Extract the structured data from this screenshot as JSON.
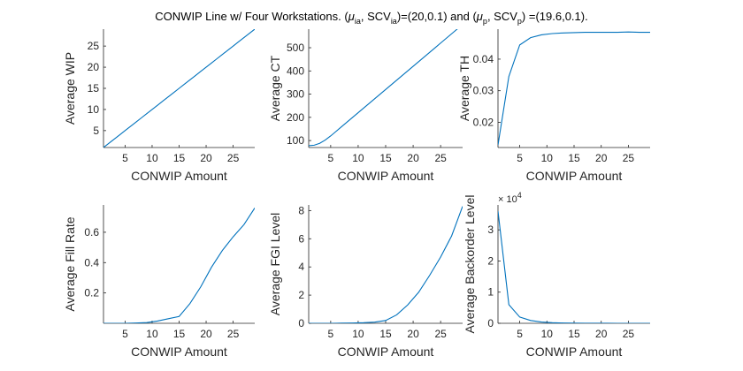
{
  "figure": {
    "title_parts": [
      {
        "t": "CONWIP Line w/ Four Workstations.  ("
      },
      {
        "t": "μ",
        "style": "italic"
      },
      {
        "t": "ia",
        "style": "sub"
      },
      {
        "t": ", SCV"
      },
      {
        "t": "ia",
        "style": "sub"
      },
      {
        "t": ")=(20,0.1) and ("
      },
      {
        "t": "μ",
        "style": "italic"
      },
      {
        "t": "p",
        "style": "sub"
      },
      {
        "t": ", SCV"
      },
      {
        "t": "p",
        "style": "sub"
      },
      {
        "t": ") =(19.6,0.1)."
      }
    ],
    "line_color": "#0072BD"
  },
  "chart_data": [
    {
      "type": "line",
      "xlabel": "CONWIP Amount",
      "ylabel": "Average WIP",
      "xlim": [
        1,
        29
      ],
      "ylim": [
        1,
        29
      ],
      "xticks": [
        5,
        10,
        15,
        20,
        25
      ],
      "yticks": [
        5,
        10,
        15,
        20,
        25
      ],
      "x": [
        1,
        2,
        3,
        4,
        5,
        6,
        7,
        8,
        9,
        10,
        11,
        12,
        13,
        14,
        15,
        16,
        17,
        18,
        19,
        20,
        21,
        22,
        23,
        24,
        25,
        26,
        27,
        28,
        29
      ],
      "y": [
        1,
        2,
        3,
        4,
        5,
        6,
        7,
        8,
        9,
        10,
        11,
        12,
        13,
        14,
        15,
        16,
        17,
        18,
        19,
        20,
        21,
        22,
        23,
        24,
        25,
        26,
        27,
        28,
        29
      ]
    },
    {
      "type": "line",
      "xlabel": "CONWIP Amount",
      "ylabel": "Average CT",
      "xlim": [
        1,
        29
      ],
      "ylim": [
        70,
        580
      ],
      "xticks": [
        5,
        10,
        15,
        20,
        25
      ],
      "yticks": [
        100,
        200,
        300,
        400,
        500
      ],
      "x": [
        1,
        2,
        3,
        4,
        5,
        6,
        7,
        8,
        9,
        10,
        11,
        12,
        13,
        14,
        15,
        16,
        17,
        18,
        19,
        20,
        21,
        22,
        23,
        24,
        25,
        26,
        27,
        28,
        29
      ],
      "y": [
        78,
        80,
        88,
        102,
        120,
        140,
        160,
        180,
        200,
        220,
        240,
        260,
        280,
        300,
        320,
        340,
        360,
        380,
        400,
        420,
        440,
        460,
        480,
        500,
        520,
        540,
        560,
        580,
        600
      ]
    },
    {
      "type": "line",
      "xlabel": "CONWIP Amount",
      "ylabel": "Average TH",
      "xlim": [
        1,
        29
      ],
      "ylim": [
        0.012,
        0.0495
      ],
      "xticks": [
        5,
        10,
        15,
        20,
        25
      ],
      "yticks": [
        0.02,
        0.03,
        0.04
      ],
      "x": [
        1,
        3,
        5,
        7,
        9,
        11,
        13,
        15,
        17,
        19,
        21,
        23,
        25,
        27,
        29
      ],
      "y": [
        0.0128,
        0.0345,
        0.0445,
        0.0468,
        0.0477,
        0.0481,
        0.0483,
        0.0484,
        0.0485,
        0.0485,
        0.0485,
        0.0485,
        0.0486,
        0.0485,
        0.0485
      ]
    },
    {
      "type": "line",
      "xlabel": "CONWIP Amount",
      "ylabel": "Average Fill Rate",
      "xlim": [
        1,
        29
      ],
      "ylim": [
        0,
        0.78
      ],
      "xticks": [
        5,
        10,
        15,
        20,
        25
      ],
      "yticks": [
        0.2,
        0.4,
        0.6
      ],
      "x": [
        1,
        3,
        5,
        7,
        9,
        11,
        13,
        15,
        17,
        19,
        21,
        23,
        25,
        27,
        29
      ],
      "y": [
        0.0,
        0.0,
        0.0,
        0.002,
        0.005,
        0.015,
        0.03,
        0.045,
        0.13,
        0.24,
        0.37,
        0.48,
        0.57,
        0.65,
        0.76
      ]
    },
    {
      "type": "line",
      "xlabel": "CONWIP Amount",
      "ylabel": "Average FGI Level",
      "xlim": [
        1,
        29
      ],
      "ylim": [
        0,
        8.4
      ],
      "xticks": [
        5,
        10,
        15,
        20,
        25
      ],
      "yticks": [
        0,
        2,
        4,
        6,
        8
      ],
      "x": [
        1,
        3,
        5,
        7,
        9,
        11,
        13,
        15,
        17,
        19,
        21,
        23,
        25,
        27,
        29
      ],
      "y": [
        0,
        0,
        0,
        0.01,
        0.02,
        0.04,
        0.08,
        0.2,
        0.6,
        1.3,
        2.2,
        3.4,
        4.7,
        6.2,
        8.3
      ]
    },
    {
      "type": "line",
      "xlabel": "CONWIP Amount",
      "ylabel": "Average Backorder Level",
      "exponent_label": "× 10",
      "exponent_power": "4",
      "xlim": [
        1,
        29
      ],
      "ylim": [
        0,
        38000
      ],
      "xticks": [
        5,
        10,
        15,
        20,
        25
      ],
      "yticks": [
        0,
        10000,
        20000,
        30000
      ],
      "ytick_labels": [
        "0",
        "1",
        "2",
        "3"
      ],
      "x": [
        1,
        3,
        5,
        7,
        9,
        11,
        13,
        15,
        17,
        19,
        21,
        23,
        25,
        27,
        29
      ],
      "y": [
        36000,
        6000,
        2000,
        900,
        400,
        200,
        100,
        50,
        20,
        10,
        5,
        2,
        1,
        0,
        0
      ]
    }
  ]
}
